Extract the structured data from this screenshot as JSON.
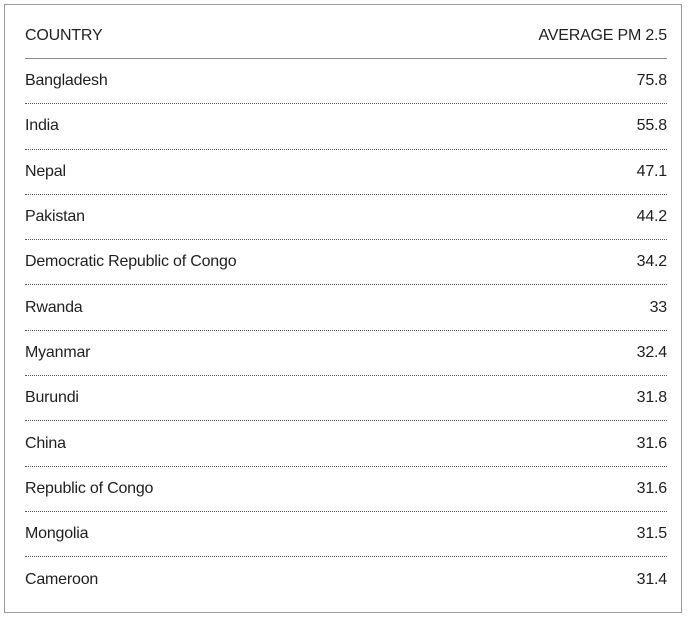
{
  "chart_data": {
    "type": "table",
    "columns": [
      "COUNTRY",
      "AVERAGE PM 2.5"
    ],
    "rows": [
      {
        "country": "Bangladesh",
        "value": "75.8"
      },
      {
        "country": "India",
        "value": "55.8"
      },
      {
        "country": "Nepal",
        "value": "47.1"
      },
      {
        "country": "Pakistan",
        "value": "44.2"
      },
      {
        "country": "Democratic Republic of Congo",
        "value": "34.2"
      },
      {
        "country": "Rwanda",
        "value": "33"
      },
      {
        "country": "Myanmar",
        "value": "32.4"
      },
      {
        "country": "Burundi",
        "value": "31.8"
      },
      {
        "country": "China",
        "value": "31.6"
      },
      {
        "country": "Republic of Congo",
        "value": "31.6"
      },
      {
        "country": "Mongolia",
        "value": "31.5"
      },
      {
        "country": "Cameroon",
        "value": "31.4"
      }
    ]
  }
}
